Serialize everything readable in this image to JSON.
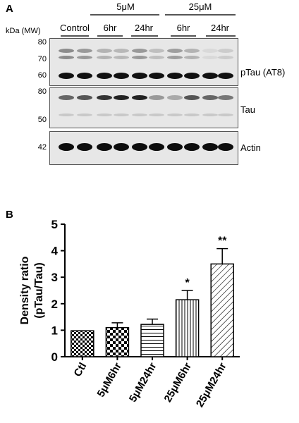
{
  "panel_a": {
    "letter": "A",
    "mw_caption": "kDa (MW)",
    "control_label": "Control",
    "groups": [
      {
        "label": "5μM",
        "times": [
          "6hr",
          "24hr"
        ]
      },
      {
        "label": "25μM",
        "times": [
          "6hr",
          "24hr"
        ]
      }
    ],
    "blots": [
      {
        "label": "pTau (AT8)",
        "markers": [
          "80",
          "70",
          "60"
        ]
      },
      {
        "label": "Tau",
        "markers": [
          "80",
          "50"
        ]
      },
      {
        "label": "Actin",
        "markers": [
          "42"
        ]
      }
    ]
  },
  "panel_b": {
    "letter": "B"
  },
  "chart_data": {
    "type": "bar",
    "ylabel": "Density ratio (pTau/Tau)",
    "ylabel_line1": "Density ratio",
    "ylabel_line2": "(pTau/Tau)",
    "ylim": [
      0,
      5
    ],
    "yticks": [
      "0",
      "1",
      "2",
      "3",
      "4",
      "5"
    ],
    "categories": [
      "Ctl",
      "5μM6hr",
      "5μM24hr",
      "25μM6hr",
      "25μM24hr"
    ],
    "values": [
      0.98,
      1.1,
      1.22,
      2.15,
      3.5
    ],
    "errors": [
      0,
      0.18,
      0.2,
      0.35,
      0.58
    ],
    "patterns": [
      "checker",
      "checker-large",
      "horizontal",
      "vertical",
      "diagonal"
    ],
    "annotations": [
      "",
      "",
      "",
      "*",
      "**"
    ],
    "grid": false,
    "colors": {
      "bar_stroke": "#000000",
      "fill_pattern": "#000000",
      "background": "#ffffff"
    }
  }
}
